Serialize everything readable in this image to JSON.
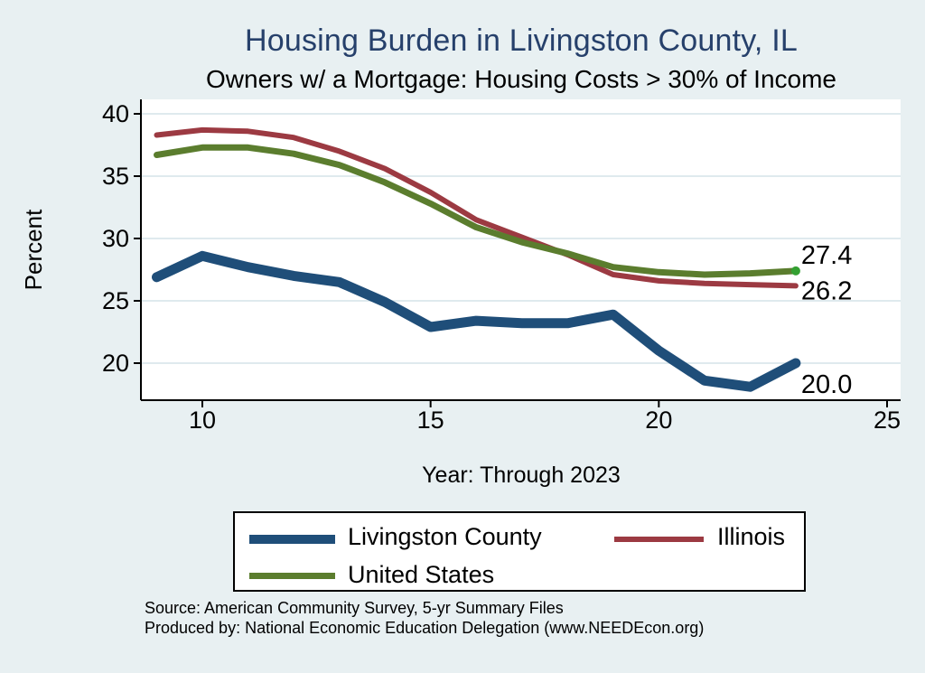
{
  "header": {
    "title": "Housing Burden in Livingston County, IL",
    "subtitle": "Owners w/ a Mortgage: Housing Costs > 30% of Income"
  },
  "chart_data": {
    "type": "line",
    "x": [
      9,
      10,
      11,
      12,
      13,
      14,
      15,
      16,
      17,
      18,
      19,
      20,
      21,
      22,
      23
    ],
    "series": [
      {
        "name": "Livingston County",
        "color": "#1f4e79",
        "line_width": 11,
        "values": [
          26.9,
          28.6,
          27.7,
          27.0,
          26.5,
          24.9,
          22.9,
          23.4,
          23.2,
          23.2,
          23.9,
          21.0,
          18.6,
          18.1,
          20.0
        ],
        "end_label": "20.0"
      },
      {
        "name": "Illinois",
        "color": "#9c3a42",
        "line_width": 6,
        "values": [
          38.3,
          38.7,
          38.6,
          38.1,
          37.0,
          35.6,
          33.7,
          31.5,
          30.1,
          28.7,
          27.1,
          26.6,
          26.4,
          26.3,
          26.2
        ],
        "end_label": "26.2"
      },
      {
        "name": "United States",
        "color": "#5b7d2e",
        "line_width": 7,
        "values": [
          36.7,
          37.3,
          37.3,
          36.8,
          35.9,
          34.5,
          32.8,
          30.9,
          29.7,
          28.8,
          27.7,
          27.3,
          27.1,
          27.2,
          27.4
        ],
        "end_label": "27.4",
        "end_dot_color": "#34a032"
      }
    ],
    "title": "Housing Burden in Livingston County, IL",
    "subtitle": "Owners w/ a Mortgage: Housing Costs > 30% of Income",
    "xlabel": "Year: Through 2023",
    "ylabel": "Percent",
    "x_ticks": [
      "10",
      "15",
      "20",
      "25"
    ],
    "x_tick_values": [
      10,
      15,
      20,
      25
    ],
    "y_ticks": [
      "20",
      "25",
      "30",
      "35",
      "40"
    ],
    "y_tick_values": [
      20,
      25,
      30,
      35,
      40
    ],
    "ylim": [
      17.5,
      41.2
    ],
    "xlim": [
      8.65,
      25.3
    ],
    "grid": true,
    "legend_position": "bottom"
  },
  "legend": {
    "item1": "Livingston County",
    "item2": "Illinois",
    "item3": "United States"
  },
  "footer": {
    "source_line1": "Source: American Community Survey, 5-yr Summary Files",
    "source_line2": "Produced by: National Economic Education Delegation (www.NEEDEcon.org)"
  },
  "colors": {
    "background": "#e8f0f2",
    "plot_background": "#ffffff",
    "gridline": "#dfeaee",
    "axis": "#000000",
    "title": "#26406b",
    "livingston": "#1f4e79",
    "illinois": "#9c3a42",
    "united_states": "#5b7d2e",
    "end_dot": "#34a032"
  }
}
